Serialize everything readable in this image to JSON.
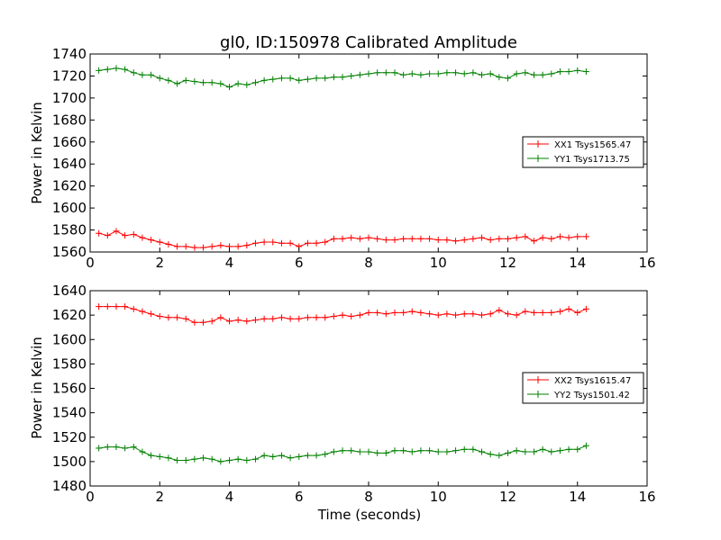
{
  "chart_data": [
    {
      "type": "line",
      "title": "gl0, ID:150978 Calibrated Amplitude",
      "xlabel": "",
      "ylabel": "Power in Kelvin",
      "xlim": [
        0,
        16
      ],
      "ylim": [
        1560,
        1740
      ],
      "xticks": [
        "0",
        "2",
        "4",
        "6",
        "8",
        "10",
        "12",
        "14",
        "16"
      ],
      "yticks": [
        "1560",
        "1580",
        "1600",
        "1620",
        "1640",
        "1660",
        "1680",
        "1700",
        "1720",
        "1740"
      ],
      "grid": false,
      "legend_position": "right",
      "x": [
        0.25,
        0.5,
        0.75,
        1.0,
        1.25,
        1.5,
        1.75,
        2.0,
        2.25,
        2.5,
        2.75,
        3.0,
        3.25,
        3.5,
        3.75,
        4.0,
        4.25,
        4.5,
        4.75,
        5.0,
        5.25,
        5.5,
        5.75,
        6.0,
        6.25,
        6.5,
        6.75,
        7.0,
        7.25,
        7.5,
        7.75,
        8.0,
        8.25,
        8.5,
        8.75,
        9.0,
        9.25,
        9.5,
        9.75,
        10.0,
        10.25,
        10.5,
        10.75,
        11.0,
        11.25,
        11.5,
        11.75,
        12.0,
        12.25,
        12.5,
        12.75,
        13.0,
        13.25,
        13.5,
        13.75,
        14.0,
        14.25
      ],
      "series": [
        {
          "name": "XX1 Tsys1565.47",
          "color": "#ff0000",
          "values": [
            1577,
            1575,
            1579,
            1575,
            1576,
            1573,
            1571,
            1569,
            1567,
            1565,
            1565,
            1564,
            1564,
            1565,
            1566,
            1565,
            1565,
            1566,
            1568,
            1569,
            1569,
            1568,
            1568,
            1565,
            1568,
            1568,
            1569,
            1572,
            1572,
            1573,
            1572,
            1573,
            1572,
            1571,
            1571,
            1572,
            1572,
            1572,
            1572,
            1571,
            1571,
            1570,
            1571,
            1572,
            1573,
            1571,
            1572,
            1572,
            1573,
            1574,
            1570,
            1573,
            1572,
            1574,
            1573,
            1574,
            1574
          ]
        },
        {
          "name": "YY1 Tsys1713.75",
          "color": "#008000",
          "values": [
            1725,
            1726,
            1727,
            1726,
            1723,
            1721,
            1721,
            1718,
            1716,
            1713,
            1716,
            1715,
            1714,
            1714,
            1713,
            1710,
            1713,
            1712,
            1714,
            1716,
            1717,
            1718,
            1718,
            1716,
            1717,
            1718,
            1718,
            1719,
            1719,
            1720,
            1721,
            1722,
            1723,
            1723,
            1723,
            1721,
            1722,
            1721,
            1722,
            1722,
            1723,
            1723,
            1722,
            1723,
            1721,
            1722,
            1719,
            1718,
            1722,
            1723,
            1721,
            1721,
            1722,
            1724,
            1724,
            1725,
            1724
          ]
        }
      ]
    },
    {
      "type": "line",
      "title": "",
      "xlabel": "Time (seconds)",
      "ylabel": "Power in Kelvin",
      "xlim": [
        0,
        16
      ],
      "ylim": [
        1480,
        1640
      ],
      "xticks": [
        "0",
        "2",
        "4",
        "6",
        "8",
        "10",
        "12",
        "14",
        "16"
      ],
      "yticks": [
        "1480",
        "1500",
        "1520",
        "1540",
        "1560",
        "1580",
        "1600",
        "1620",
        "1640"
      ],
      "grid": false,
      "legend_position": "right",
      "x": [
        0.25,
        0.5,
        0.75,
        1.0,
        1.25,
        1.5,
        1.75,
        2.0,
        2.25,
        2.5,
        2.75,
        3.0,
        3.25,
        3.5,
        3.75,
        4.0,
        4.25,
        4.5,
        4.75,
        5.0,
        5.25,
        5.5,
        5.75,
        6.0,
        6.25,
        6.5,
        6.75,
        7.0,
        7.25,
        7.5,
        7.75,
        8.0,
        8.25,
        8.5,
        8.75,
        9.0,
        9.25,
        9.5,
        9.75,
        10.0,
        10.25,
        10.5,
        10.75,
        11.0,
        11.25,
        11.5,
        11.75,
        12.0,
        12.25,
        12.5,
        12.75,
        13.0,
        13.25,
        13.5,
        13.75,
        14.0,
        14.25
      ],
      "series": [
        {
          "name": "XX2 Tsys1615.47",
          "color": "#ff0000",
          "values": [
            1627,
            1627,
            1627,
            1627,
            1625,
            1623,
            1621,
            1619,
            1618,
            1618,
            1617,
            1614,
            1614,
            1615,
            1618,
            1615,
            1616,
            1615,
            1616,
            1617,
            1617,
            1618,
            1617,
            1617,
            1618,
            1618,
            1618,
            1619,
            1620,
            1619,
            1620,
            1622,
            1622,
            1621,
            1622,
            1622,
            1623,
            1622,
            1621,
            1620,
            1621,
            1620,
            1621,
            1621,
            1620,
            1621,
            1624,
            1621,
            1620,
            1623,
            1622,
            1622,
            1622,
            1623,
            1625,
            1622,
            1625
          ]
        },
        {
          "name": "YY2 Tsys1501.42",
          "color": "#008000",
          "values": [
            1511,
            1512,
            1512,
            1511,
            1512,
            1508,
            1505,
            1504,
            1503,
            1501,
            1501,
            1502,
            1503,
            1502,
            1500,
            1501,
            1502,
            1501,
            1502,
            1505,
            1504,
            1505,
            1503,
            1504,
            1505,
            1505,
            1506,
            1508,
            1509,
            1509,
            1508,
            1508,
            1507,
            1507,
            1509,
            1509,
            1508,
            1509,
            1509,
            1508,
            1508,
            1509,
            1510,
            1510,
            1508,
            1506,
            1505,
            1507,
            1509,
            1508,
            1508,
            1510,
            1508,
            1509,
            1510,
            1510,
            1513
          ]
        }
      ]
    }
  ]
}
